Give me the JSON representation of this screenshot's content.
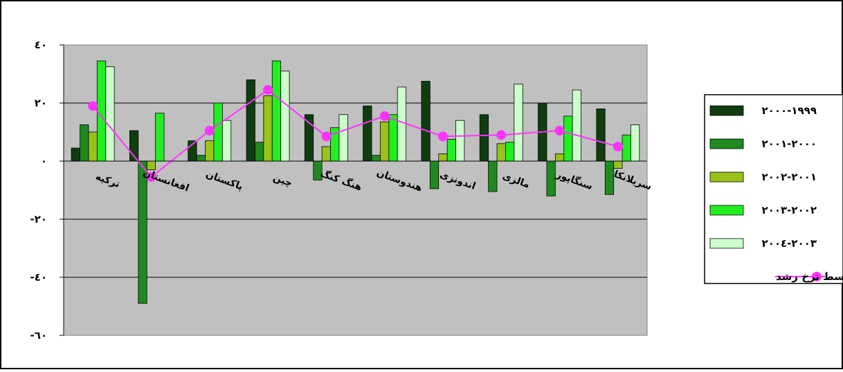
{
  "chart_data": {
    "type": "bar",
    "title": "",
    "xlabel": "",
    "ylabel": "",
    "ylim": [
      -60,
      40
    ],
    "yticks": [
      40,
      20,
      0,
      -20,
      -40,
      -60
    ],
    "ytick_labels": [
      "٤٠",
      "٢٠",
      "٠",
      "-٢٠",
      "-٤٠",
      "-٦٠"
    ],
    "grid": true,
    "legend_position": "right",
    "plot_background": "#c0c0c0",
    "categories": [
      "ترکیه",
      "افغانستان",
      "پاکستان",
      "چین",
      "هنگ کنگ",
      "هندوستان",
      "اندونزی",
      "مالزی",
      "سنگاپور",
      "سریلانکا"
    ],
    "series": [
      {
        "name": "١٩٩٩-٢٠٠٠",
        "color": "#0f3d0f",
        "values": [
          4.5,
          10.5,
          7,
          28,
          16,
          19,
          27.5,
          16,
          20,
          18
        ]
      },
      {
        "name": "٢٠٠٠-٢٠٠١",
        "color": "#1f8a1f",
        "values": [
          12.5,
          -49,
          2,
          6.5,
          -6.5,
          2,
          -9.5,
          -10.5,
          -12,
          -11.5
        ]
      },
      {
        "name": "٢٠٠١-٢٠٠٢",
        "color": "#99c21a",
        "values": [
          10,
          -3,
          7,
          22.5,
          5,
          13.5,
          2.5,
          6,
          2.5,
          -2.5
        ]
      },
      {
        "name": "٢٠٠٢-٢٠٠٣",
        "color": "#22ee22",
        "values": [
          34.5,
          16.5,
          20,
          34.5,
          11.5,
          16,
          7.5,
          6.5,
          15.5,
          9
        ]
      },
      {
        "name": "٢٠٠٣-٢٠٠٤",
        "color": "#ccffcc",
        "values": [
          32.5,
          0,
          14,
          31,
          16,
          25.5,
          14,
          26.5,
          24.5,
          12.5
        ]
      }
    ],
    "line_series": {
      "name": "متوسط نرخ رشد",
      "color": "#ff33ff",
      "values": [
        19,
        -5.5,
        10.5,
        24.5,
        8.5,
        15.5,
        8.5,
        9,
        10.5,
        5
      ]
    }
  }
}
